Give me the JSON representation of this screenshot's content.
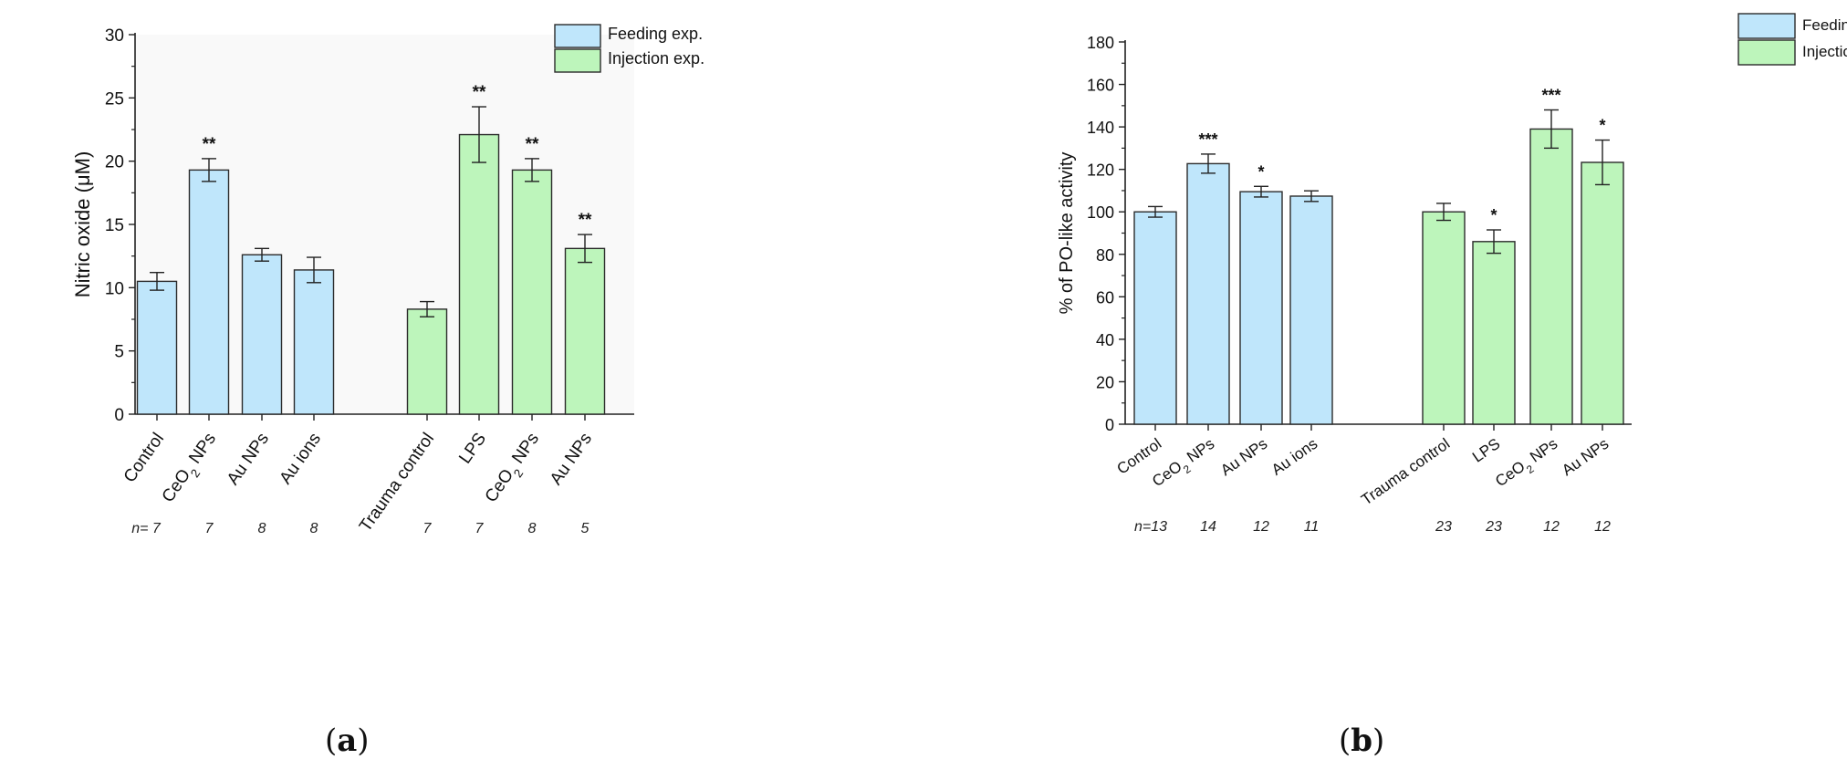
{
  "colors": {
    "feeding": "#bfe6fb",
    "injection": "#bdf5bb",
    "edge": "#2b2b2b"
  },
  "chart_data": [
    {
      "type": "bar",
      "panel": "a",
      "caption_prefix": "(",
      "caption_letter": "a",
      "caption_suffix": ")",
      "ylabel": "Nitric oxide (μM)",
      "ylim": [
        0,
        30
      ],
      "yticks": [
        "0",
        "5",
        "10",
        "15",
        "20",
        "25",
        "30"
      ],
      "legend": [
        "Feeding exp.",
        "Injection exp."
      ],
      "legend_position": "top-right",
      "n_prefix": "n=",
      "categories": [
        "Control",
        "CeO2 NPs",
        "Au NPs",
        "Au ions",
        "Trauma control",
        "LPS",
        "CeO2 NPs",
        "Au NPs"
      ],
      "groups": [
        "feeding",
        "feeding",
        "feeding",
        "feeding",
        "injection",
        "injection",
        "injection",
        "injection"
      ],
      "values": [
        10.5,
        19.3,
        12.6,
        11.4,
        8.3,
        22.1,
        19.3,
        13.1
      ],
      "errors": [
        0.7,
        0.9,
        0.5,
        1.0,
        0.6,
        2.2,
        0.9,
        1.1
      ],
      "significance": [
        "",
        "**",
        "",
        "",
        "",
        "**",
        "**",
        "**"
      ],
      "n": [
        "7",
        "7",
        "8",
        "8",
        "7",
        "7",
        "8",
        "5"
      ]
    },
    {
      "type": "bar",
      "panel": "b",
      "caption_prefix": "(",
      "caption_letter": "b",
      "caption_suffix": ")",
      "ylabel": "% of PO-like activity",
      "ylim": [
        0,
        180
      ],
      "yticks": [
        "0",
        "20",
        "40",
        "60",
        "80",
        "100",
        "120",
        "140",
        "160",
        "180"
      ],
      "legend": [
        "Feeding exp.",
        "Injection exp."
      ],
      "legend_position": "top-right",
      "n_prefix": "n=",
      "categories": [
        "Control",
        "CeO2 NPs",
        "Au NPs",
        "Au ions",
        "Trauma control",
        "LPS",
        "CeO2 NPs",
        "Au NPs"
      ],
      "groups": [
        "feeding",
        "feeding",
        "feeding",
        "feeding",
        "injection",
        "injection",
        "injection",
        "injection"
      ],
      "values": [
        100,
        122.7,
        109.5,
        107.4,
        100,
        86,
        139,
        123.3
      ],
      "errors": [
        2.5,
        4.5,
        2.5,
        2.5,
        4.0,
        5.5,
        9.0,
        10.5
      ],
      "significance": [
        "",
        "***",
        "*",
        "",
        "",
        "*",
        "***",
        "*"
      ],
      "n": [
        "13",
        "14",
        "12",
        "11",
        "23",
        "23",
        "12",
        "12"
      ]
    }
  ]
}
